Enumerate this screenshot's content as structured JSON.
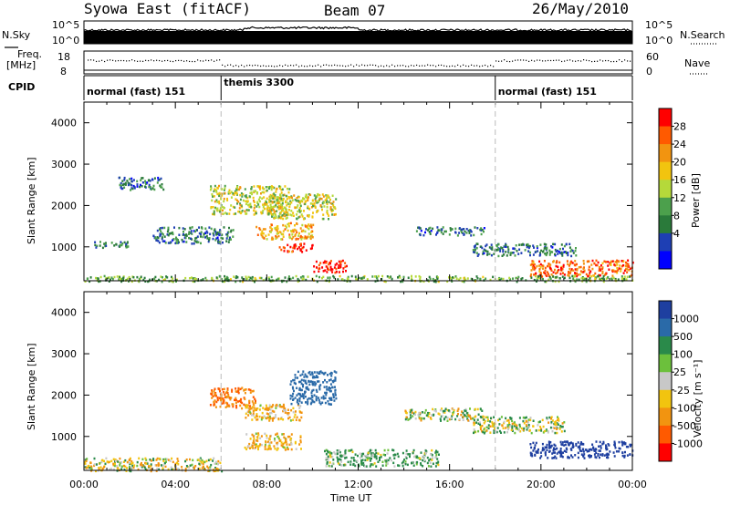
{
  "header": {
    "title": "Syowa East (fitACF)",
    "beam": "Beam 07",
    "date": "26/May/2010"
  },
  "nsky_panel": {
    "left_label": "N.Sky",
    "right_label": "N.Search",
    "left_ticks": [
      "10^5",
      "10^0"
    ],
    "right_ticks": [
      "10^5",
      "10^0"
    ]
  },
  "freq_panel": {
    "left_label_1": "Freq.",
    "left_label_2": "[MHz]",
    "right_label": "Nave",
    "left_ticks": [
      "18",
      "8"
    ],
    "right_ticks": [
      "60",
      "0"
    ]
  },
  "cpid_panel": {
    "label": "CPID",
    "segments": [
      {
        "name": "normal (fast) 151",
        "start": 0,
        "end": 6
      },
      {
        "name": "themis 3300",
        "start": 6,
        "end": 18
      },
      {
        "name": "normal (fast) 151",
        "start": 18,
        "end": 24
      }
    ]
  },
  "power_panel": {
    "ylabel": "Slant Range [km]",
    "yticks": [
      "4000",
      "3000",
      "2000",
      "1000"
    ],
    "colorbar_label": "Power [dB]",
    "colorbar_ticks": [
      "28",
      "24",
      "20",
      "16",
      "12",
      "8",
      "4"
    ],
    "colors": [
      "#0000ff",
      "#1e3fb4",
      "#2a7a3a",
      "#4ca04c",
      "#b5d93a",
      "#f2c40f",
      "#f29410",
      "#ff5a00",
      "#ff0000"
    ]
  },
  "velocity_panel": {
    "ylabel": "Slant Range [km]",
    "yticks": [
      "4000",
      "3000",
      "2000",
      "1000"
    ],
    "colorbar_label": "Velocity [m s⁻¹]",
    "colorbar_ticks": [
      "1000",
      "500",
      "100",
      "25",
      "-25",
      "-100",
      "-500",
      "-1000"
    ],
    "colors": [
      "#1e3fa0",
      "#2a6aa8",
      "#2a8a4a",
      "#6cc03c",
      "#c8c8c8",
      "#f2c40f",
      "#f29410",
      "#ff5a00",
      "#ff0000"
    ]
  },
  "xaxis": {
    "ticks": [
      "00:00",
      "04:00",
      "08:00",
      "12:00",
      "16:00",
      "20:00",
      "00:00"
    ],
    "label": "Time UT"
  },
  "chart_data": [
    {
      "type": "heatmap",
      "title": "Syowa East (fitACF)",
      "xlabel": "Time UT",
      "ylabel": "Slant Range [km]",
      "xlim": [
        0,
        24
      ],
      "ylim": [
        180,
        4500
      ],
      "color_quantity": "Power [dB]",
      "color_ticks": [
        4,
        8,
        12,
        16,
        20,
        24,
        28
      ],
      "regions": [
        {
          "t": [
            0.3,
            2.0
          ],
          "range": [
            1000,
            1150
          ],
          "power": 8
        },
        {
          "t": [
            1.5,
            3.5
          ],
          "range": [
            2400,
            2700
          ],
          "power": 8
        },
        {
          "t": [
            3.0,
            6.5
          ],
          "range": [
            1100,
            1500
          ],
          "power": 8
        },
        {
          "t": [
            5.5,
            9.0
          ],
          "range": [
            1800,
            2500
          ],
          "power": 16
        },
        {
          "t": [
            7.5,
            10.0
          ],
          "range": [
            1200,
            1600
          ],
          "power": 20
        },
        {
          "t": [
            8.5,
            10.0
          ],
          "range": [
            900,
            1100
          ],
          "power": 28
        },
        {
          "t": [
            10.0,
            11.5
          ],
          "range": [
            400,
            700
          ],
          "power": 28
        },
        {
          "t": [
            8.0,
            11.0
          ],
          "range": [
            1700,
            2300
          ],
          "power": 16
        },
        {
          "t": [
            14.5,
            17.5
          ],
          "range": [
            1300,
            1500
          ],
          "power": 8
        },
        {
          "t": [
            17.0,
            21.5
          ],
          "range": [
            800,
            1100
          ],
          "power": 8
        },
        {
          "t": [
            19.5,
            24.0
          ],
          "range": [
            300,
            700
          ],
          "power": 24
        },
        {
          "t": [
            0.0,
            24.0
          ],
          "range": [
            180,
            320
          ],
          "power": 12
        }
      ]
    },
    {
      "type": "heatmap",
      "title": "",
      "xlabel": "Time UT",
      "ylabel": "Slant Range [km]",
      "xlim": [
        0,
        24
      ],
      "ylim": [
        180,
        4500
      ],
      "color_quantity": "Velocity [m s^-1]",
      "color_ticks": [
        -1000,
        -500,
        -100,
        -25,
        25,
        100,
        500,
        1000
      ],
      "regions": [
        {
          "t": [
            5.5,
            7.5
          ],
          "range": [
            1700,
            2200
          ],
          "velocity": -500
        },
        {
          "t": [
            7.0,
            9.5
          ],
          "range": [
            1400,
            1800
          ],
          "velocity": -100
        },
        {
          "t": [
            7.0,
            9.5
          ],
          "range": [
            700,
            1100
          ],
          "velocity": -100
        },
        {
          "t": [
            9.0,
            11.0
          ],
          "range": [
            1800,
            2600
          ],
          "velocity": 500
        },
        {
          "t": [
            10.5,
            15.5
          ],
          "range": [
            300,
            700
          ],
          "velocity": 100
        },
        {
          "t": [
            14.0,
            17.5
          ],
          "range": [
            1400,
            1700
          ],
          "velocity": 0
        },
        {
          "t": [
            17.0,
            21.0
          ],
          "range": [
            1100,
            1500
          ],
          "velocity": 0
        },
        {
          "t": [
            19.5,
            24.0
          ],
          "range": [
            500,
            900
          ],
          "velocity": 1000
        },
        {
          "t": [
            0.0,
            6.0
          ],
          "range": [
            180,
            500
          ],
          "velocity": -25
        }
      ]
    }
  ]
}
